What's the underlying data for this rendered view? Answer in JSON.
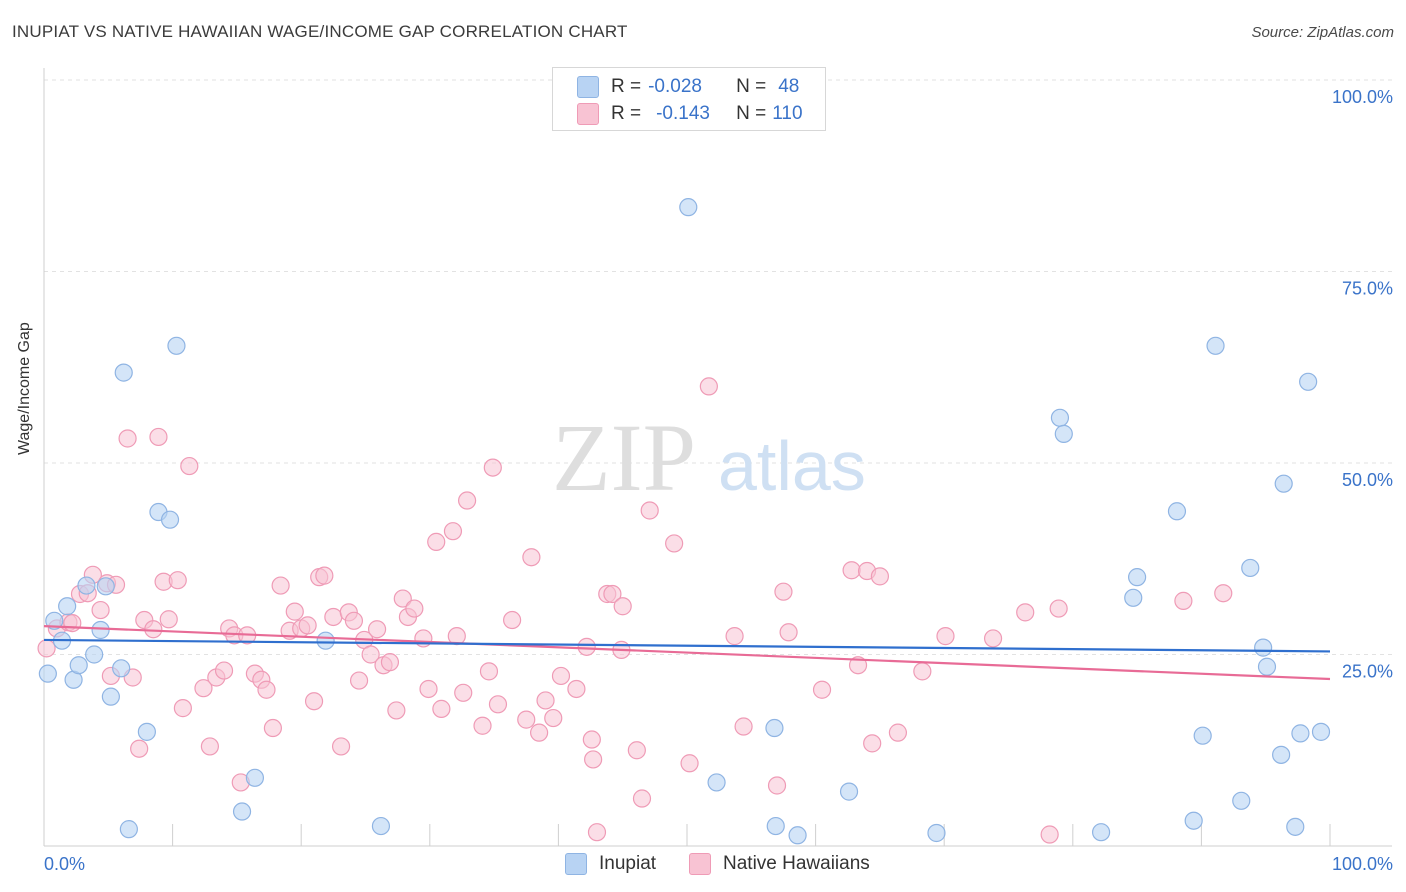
{
  "title": "INUPIAT VS NATIVE HAWAIIAN WAGE/INCOME GAP CORRELATION CHART",
  "source": "Source: ZipAtlas.com",
  "watermark": {
    "zip": "ZIP",
    "atlas": "atlas"
  },
  "legend": {
    "rows": [
      {
        "r_label": "R =",
        "r_value": "-0.028",
        "n_label": "N =",
        "n_value": "48"
      },
      {
        "r_label": "R =",
        "r_value": "-0.143",
        "n_label": "N =",
        "n_value": "110"
      }
    ]
  },
  "colors": {
    "inupiat_fill": "#b8d3f3",
    "inupiat_stroke": "#8fb4e3",
    "inupiat_line": "#2f6fce",
    "hawaiian_fill": "#f8c3d3",
    "hawaiian_stroke": "#ef9bb6",
    "hawaiian_line": "#e86b96",
    "tick_text": "#3a73c9"
  },
  "chart_data": {
    "type": "scatter",
    "title": "INUPIAT VS NATIVE HAWAIIAN WAGE/INCOME GAP CORRELATION CHART",
    "ylabel": "Wage/Income Gap",
    "xlabel": "",
    "x_tick_labels": [
      "0.0%",
      "100.0%"
    ],
    "y_tick_labels": [
      "25.0%",
      "50.0%",
      "75.0%",
      "100.0%"
    ],
    "xlim": [
      0,
      100
    ],
    "ylim": [
      0,
      100
    ],
    "grid": true,
    "legend_position": "top-center",
    "series": [
      {
        "name": "Inupiat",
        "R": -0.028,
        "N": 48,
        "trend": [
          [
            0,
            26.9
          ],
          [
            100,
            25.4
          ]
        ],
        "points": [
          [
            0.3,
            22.5
          ],
          [
            0.8,
            29.4
          ],
          [
            1.4,
            26.8
          ],
          [
            1.8,
            31.3
          ],
          [
            2.3,
            21.7
          ],
          [
            2.7,
            23.6
          ],
          [
            3.3,
            34.0
          ],
          [
            3.9,
            25.0
          ],
          [
            4.4,
            28.2
          ],
          [
            4.8,
            33.9
          ],
          [
            5.2,
            19.5
          ],
          [
            6.0,
            23.2
          ],
          [
            6.2,
            61.8
          ],
          [
            6.6,
            2.2
          ],
          [
            8.0,
            14.9
          ],
          [
            8.9,
            43.6
          ],
          [
            9.8,
            42.6
          ],
          [
            10.3,
            65.3
          ],
          [
            15.4,
            4.5
          ],
          [
            16.4,
            8.9
          ],
          [
            21.9,
            26.8
          ],
          [
            26.2,
            2.6
          ],
          [
            50.1,
            83.4
          ],
          [
            52.3,
            8.3
          ],
          [
            56.8,
            15.4
          ],
          [
            56.9,
            2.6
          ],
          [
            58.6,
            1.4
          ],
          [
            62.6,
            7.1
          ],
          [
            69.4,
            1.7
          ],
          [
            79.0,
            55.9
          ],
          [
            79.3,
            53.8
          ],
          [
            82.2,
            1.8
          ],
          [
            84.7,
            32.4
          ],
          [
            85.0,
            35.1
          ],
          [
            88.1,
            43.7
          ],
          [
            89.4,
            3.3
          ],
          [
            90.1,
            14.4
          ],
          [
            91.1,
            65.3
          ],
          [
            93.1,
            5.9
          ],
          [
            93.8,
            36.3
          ],
          [
            94.8,
            25.9
          ],
          [
            95.1,
            23.4
          ],
          [
            96.2,
            11.9
          ],
          [
            96.4,
            47.3
          ],
          [
            97.3,
            2.5
          ],
          [
            97.7,
            14.7
          ],
          [
            98.3,
            60.6
          ],
          [
            99.3,
            14.9
          ]
        ]
      },
      {
        "name": "Native Hawaiians",
        "R": -0.143,
        "N": 110,
        "trend": [
          [
            0,
            28.7
          ],
          [
            100,
            21.8
          ]
        ],
        "points": [
          [
            0.2,
            25.8
          ],
          [
            1.0,
            28.4
          ],
          [
            1.9,
            29.2
          ],
          [
            2.2,
            29.1
          ],
          [
            2.8,
            32.9
          ],
          [
            3.4,
            33.0
          ],
          [
            3.8,
            35.4
          ],
          [
            4.4,
            30.8
          ],
          [
            4.9,
            34.3
          ],
          [
            5.2,
            22.2
          ],
          [
            5.6,
            34.1
          ],
          [
            6.5,
            53.2
          ],
          [
            6.9,
            22.0
          ],
          [
            7.4,
            12.7
          ],
          [
            7.8,
            29.5
          ],
          [
            8.5,
            28.3
          ],
          [
            8.9,
            53.4
          ],
          [
            9.3,
            34.5
          ],
          [
            9.7,
            29.6
          ],
          [
            10.4,
            34.7
          ],
          [
            10.8,
            18.0
          ],
          [
            11.3,
            49.6
          ],
          [
            12.4,
            20.6
          ],
          [
            12.9,
            13.0
          ],
          [
            13.4,
            22.0
          ],
          [
            14.0,
            22.9
          ],
          [
            14.4,
            28.4
          ],
          [
            14.8,
            27.5
          ],
          [
            15.3,
            8.3
          ],
          [
            15.8,
            27.5
          ],
          [
            16.4,
            22.5
          ],
          [
            16.9,
            21.7
          ],
          [
            17.3,
            20.4
          ],
          [
            17.8,
            15.4
          ],
          [
            18.4,
            34.0
          ],
          [
            19.1,
            28.1
          ],
          [
            19.5,
            30.6
          ],
          [
            20.0,
            28.4
          ],
          [
            20.5,
            28.8
          ],
          [
            21.0,
            18.9
          ],
          [
            21.4,
            35.1
          ],
          [
            21.8,
            35.3
          ],
          [
            22.5,
            29.9
          ],
          [
            23.1,
            13.0
          ],
          [
            23.7,
            30.5
          ],
          [
            24.1,
            29.4
          ],
          [
            24.5,
            21.6
          ],
          [
            24.9,
            26.9
          ],
          [
            25.4,
            25.0
          ],
          [
            25.9,
            28.3
          ],
          [
            26.4,
            23.6
          ],
          [
            26.9,
            24.0
          ],
          [
            27.4,
            17.7
          ],
          [
            27.9,
            32.3
          ],
          [
            28.3,
            29.9
          ],
          [
            28.8,
            31.0
          ],
          [
            29.5,
            27.1
          ],
          [
            29.9,
            20.5
          ],
          [
            30.5,
            39.7
          ],
          [
            30.9,
            17.9
          ],
          [
            31.8,
            41.1
          ],
          [
            32.1,
            27.4
          ],
          [
            32.6,
            20.0
          ],
          [
            32.9,
            45.1
          ],
          [
            34.1,
            15.7
          ],
          [
            34.6,
            22.8
          ],
          [
            34.9,
            49.4
          ],
          [
            35.3,
            18.5
          ],
          [
            36.4,
            29.5
          ],
          [
            37.5,
            16.5
          ],
          [
            37.9,
            37.7
          ],
          [
            38.5,
            14.8
          ],
          [
            39.0,
            19.0
          ],
          [
            39.6,
            16.7
          ],
          [
            40.2,
            22.2
          ],
          [
            41.4,
            20.5
          ],
          [
            42.2,
            26.0
          ],
          [
            42.6,
            13.9
          ],
          [
            42.7,
            11.3
          ],
          [
            43.0,
            1.8
          ],
          [
            43.8,
            32.9
          ],
          [
            44.2,
            32.9
          ],
          [
            44.9,
            25.6
          ],
          [
            45.0,
            31.3
          ],
          [
            46.1,
            12.5
          ],
          [
            46.5,
            6.2
          ],
          [
            47.1,
            43.8
          ],
          [
            49.0,
            39.5
          ],
          [
            50.2,
            10.8
          ],
          [
            51.7,
            60.0
          ],
          [
            53.7,
            27.4
          ],
          [
            54.4,
            15.6
          ],
          [
            57.0,
            7.9
          ],
          [
            57.5,
            33.2
          ],
          [
            57.9,
            27.9
          ],
          [
            60.5,
            20.4
          ],
          [
            62.8,
            36.0
          ],
          [
            63.3,
            23.6
          ],
          [
            64.0,
            35.9
          ],
          [
            64.4,
            13.4
          ],
          [
            65.0,
            35.2
          ],
          [
            66.4,
            14.8
          ],
          [
            68.3,
            22.8
          ],
          [
            70.1,
            27.4
          ],
          [
            73.8,
            27.1
          ],
          [
            76.3,
            30.5
          ],
          [
            78.2,
            1.5
          ],
          [
            78.9,
            31.0
          ],
          [
            88.6,
            32.0
          ],
          [
            91.7,
            33.0
          ]
        ]
      }
    ]
  },
  "bottom_legend": [
    {
      "label": "Inupiat"
    },
    {
      "label": "Native Hawaiians"
    }
  ]
}
